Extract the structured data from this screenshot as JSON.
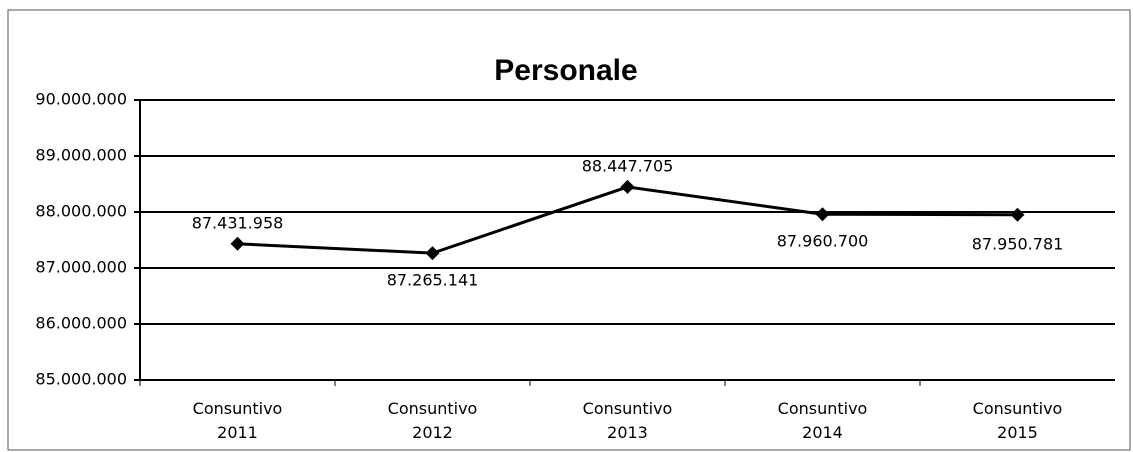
{
  "chart_data": {
    "type": "line",
    "title": "Personale",
    "categories": [
      "Consuntivo 2011",
      "Consuntivo 2012",
      "Consuntivo 2013",
      "Consuntivo 2014",
      "Consuntivo 2015"
    ],
    "series": [
      {
        "name": "Personale",
        "color": "#000000",
        "values": [
          87431958,
          87265141,
          88447705,
          87960700,
          87950781
        ],
        "value_labels": [
          "87.431.958",
          "87.265.141",
          "88.447.705",
          "87.960.700",
          "87.950.781"
        ]
      }
    ],
    "ylim": [
      85000000,
      90000000
    ],
    "yticks": [
      {
        "value": 85000000,
        "label": "85.000.000"
      },
      {
        "value": 86000000,
        "label": "86.000.000"
      },
      {
        "value": 87000000,
        "label": "87.000.000"
      },
      {
        "value": 88000000,
        "label": "88.000.000"
      },
      {
        "value": 89000000,
        "label": "89.000.000"
      },
      {
        "value": 90000000,
        "label": "90.000.000"
      }
    ],
    "grid": true
  }
}
